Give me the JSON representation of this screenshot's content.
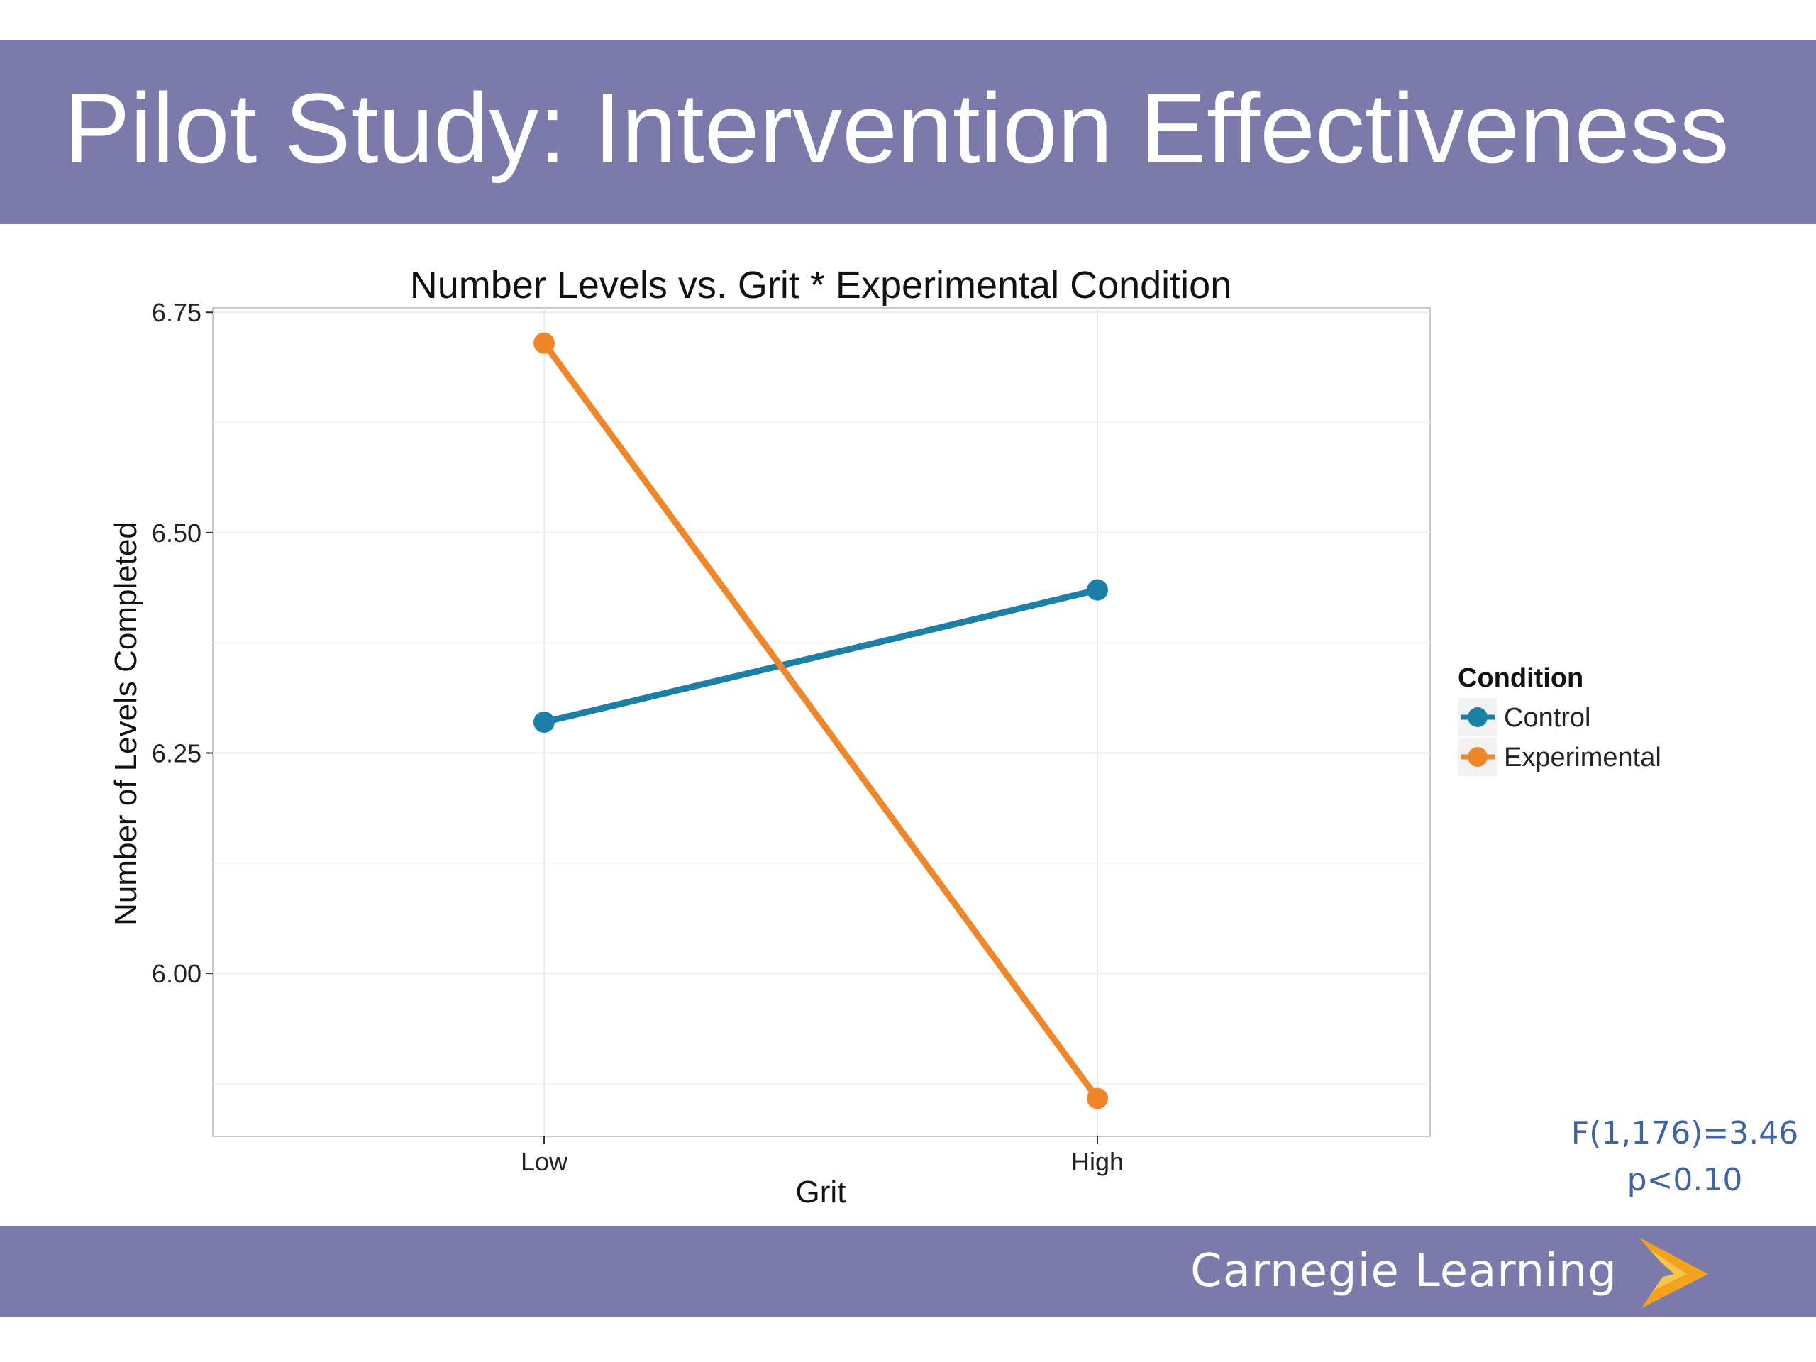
{
  "slide": {
    "title": "Pilot Study: Intervention Effectiveness",
    "footer_brand": "Carnegie Learning",
    "band_color": "#7b7aab"
  },
  "stats": {
    "line1": "F(1,176)=3.46",
    "line2": "p<0.10",
    "color": "#3f63a8"
  },
  "chart_data": {
    "type": "line",
    "title": "Number Levels vs. Grit * Experimental Condition",
    "xlabel": "Grit",
    "ylabel": "Number of Levels Completed",
    "categories": [
      "Low",
      "High"
    ],
    "ylim": [
      5.815,
      6.755
    ],
    "yticks": [
      6.0,
      6.25,
      6.5,
      6.75
    ],
    "ytick_labels": [
      "6.00",
      "6.25",
      "6.50",
      "6.75"
    ],
    "grid": true,
    "legend": {
      "title": "Condition",
      "position": "right"
    },
    "series": [
      {
        "name": "Control",
        "values": [
          6.285,
          6.435
        ],
        "color": "#1b7fa6"
      },
      {
        "name": "Experimental",
        "values": [
          6.715,
          5.858
        ],
        "color": "#f0862a"
      }
    ]
  }
}
